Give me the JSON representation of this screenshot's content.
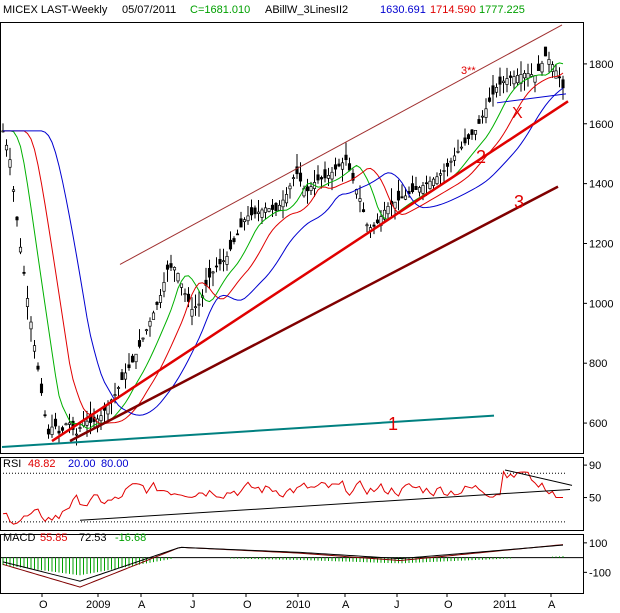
{
  "header": {
    "symbol": "MICEX LAST-Weekly",
    "date": "05/07/2011",
    "close": "C=1681.010",
    "indicator": "ABillW_3LinesII2",
    "values": [
      "1630.691",
      "1714.590",
      "1777.225"
    ]
  },
  "colors": {
    "background": "#ffffff",
    "candle": "#000000",
    "ma_fast": "#00b000",
    "ma_mid": "#e00000",
    "ma_slow": "#0000d0",
    "trend_red": "#e00000",
    "trend_dark": "#800000",
    "trend_teal": "#008080",
    "channel": "#a03030",
    "rsi_line": "#e00000",
    "macd_line": "#800000"
  },
  "chart_data": [
    {
      "type": "candlestick",
      "panel": "price",
      "title": "MICEX LAST-Weekly",
      "y_ticks": [
        600,
        800,
        1000,
        1200,
        1400,
        1600,
        1800
      ],
      "ylim": [
        500,
        1940
      ],
      "x_ticks": [
        "O",
        "2009",
        "A",
        "J",
        "O",
        "2010",
        "A",
        "J",
        "O",
        "2011",
        "A"
      ],
      "series": [
        {
          "name": "1630.691",
          "color": "#0000d0"
        },
        {
          "name": "1714.590",
          "color": "#e00000"
        },
        {
          "name": "1777.225",
          "color": "#00b000"
        }
      ],
      "annotations": [
        {
          "text": "1",
          "color": "#e00000"
        },
        {
          "text": "2",
          "color": "#e00000"
        },
        {
          "text": "3",
          "color": "#e00000"
        },
        {
          "text": "3**",
          "color": "#e00000"
        },
        {
          "text": "X",
          "color": "#e00000"
        }
      ]
    },
    {
      "type": "line",
      "panel": "rsi",
      "label": "RSI",
      "values_text": [
        "48.82",
        "20.00",
        "80.00"
      ],
      "y_ticks": [
        50,
        90
      ],
      "ylim": [
        10,
        100
      ]
    },
    {
      "type": "line",
      "panel": "macd",
      "label": "MACD",
      "values_text": [
        "55.85",
        "72.53",
        "-16.68"
      ],
      "y_ticks": [
        100,
        -100
      ],
      "ylim": [
        -240,
        160
      ]
    }
  ]
}
